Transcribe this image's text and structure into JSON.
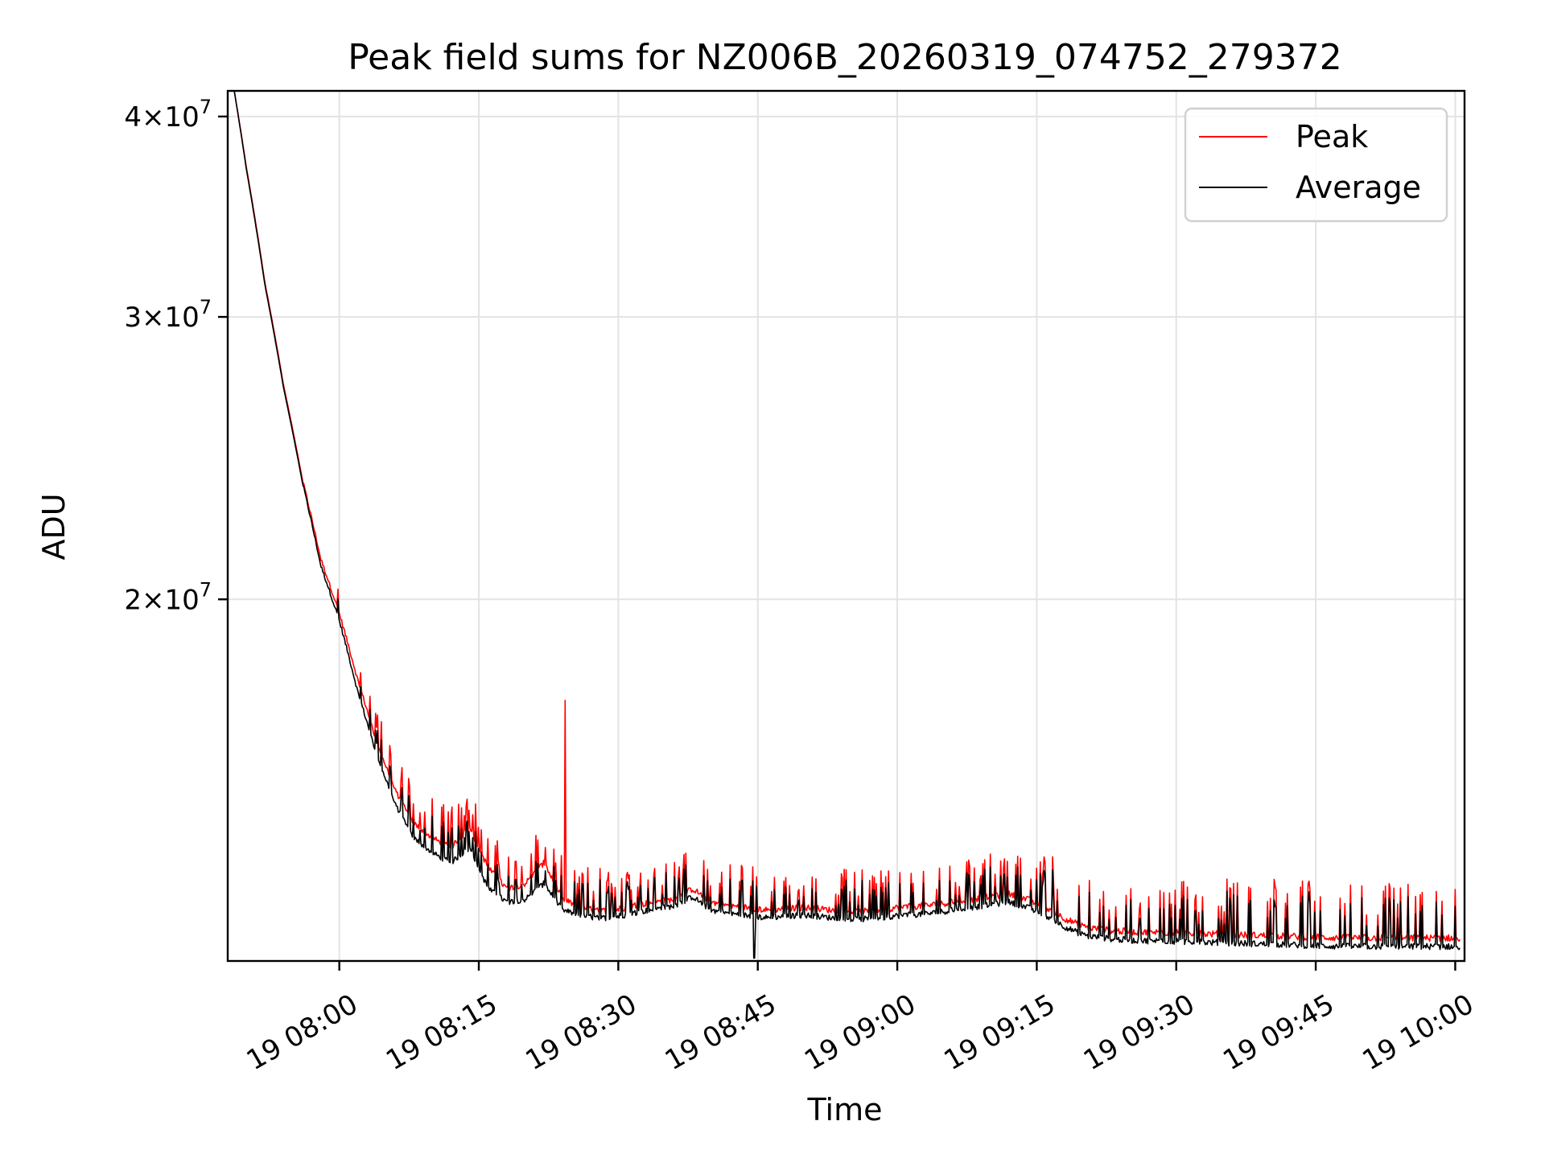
{
  "chart_data": {
    "type": "line",
    "title": "Peak field sums for NZ006B_20260319_074752_279372",
    "xlabel": "Time",
    "ylabel": "ADU",
    "y_scale": "log",
    "xlim_minutes": [
      -12,
      121
    ],
    "ylim": [
      11900000,
      41500000
    ],
    "x_ticks": [
      {
        "minutes": 0,
        "label": "19 08:00"
      },
      {
        "minutes": 15,
        "label": "19 08:15"
      },
      {
        "minutes": 30,
        "label": "19 08:30"
      },
      {
        "minutes": 45,
        "label": "19 08:45"
      },
      {
        "minutes": 60,
        "label": "19 09:00"
      },
      {
        "minutes": 75,
        "label": "19 09:15"
      },
      {
        "minutes": 90,
        "label": "19 09:30"
      },
      {
        "minutes": 105,
        "label": "19 09:45"
      },
      {
        "minutes": 120,
        "label": "19 10:00"
      }
    ],
    "y_ticks": [
      {
        "value": 20000000,
        "base": "2",
        "exp": "7"
      },
      {
        "value": 30000000,
        "base": "3",
        "exp": "7"
      },
      {
        "value": 40000000,
        "base": "4",
        "exp": "7"
      }
    ],
    "grid": true,
    "legend_position": "top-right",
    "series": [
      {
        "name": "Peak",
        "color": "#ff0000",
        "x_minutes": [
          -11.3,
          -10,
          -8,
          -6,
          -4,
          -2,
          0,
          2,
          4,
          6,
          8,
          10,
          12,
          14,
          16,
          18,
          20,
          22,
          24,
          26,
          28,
          30,
          32,
          34,
          36,
          38,
          40,
          42,
          44,
          46,
          48,
          50,
          52,
          54,
          56,
          58,
          60,
          62,
          64,
          66,
          68,
          70,
          72,
          74,
          76,
          78,
          80,
          82,
          84,
          86,
          88,
          90,
          92,
          94,
          96,
          98,
          100,
          102,
          104,
          106,
          108,
          110,
          112,
          114,
          116,
          118,
          120,
          120.5
        ],
        "values": [
          41500000,
          37200000,
          31500000,
          27200000,
          23800000,
          21200000,
          19600000,
          17800000,
          16300000,
          15200000,
          14500000,
          14200000,
          14000000,
          14400000,
          13600000,
          13200000,
          13300000,
          13700000,
          13000000,
          12850000,
          12780000,
          12820000,
          12900000,
          12950000,
          13000000,
          13200000,
          12950000,
          12880000,
          12850000,
          12800000,
          12830000,
          12850000,
          12820000,
          12780000,
          12770000,
          12800000,
          12850000,
          12870000,
          12900000,
          12950000,
          13000000,
          13050000,
          13100000,
          13000000,
          12850000,
          12650000,
          12500000,
          12450000,
          12420000,
          12400000,
          12400000,
          12390000,
          12380000,
          12370000,
          12360000,
          12350000,
          12340000,
          12330000,
          12320000,
          12310000,
          12300000,
          12300000,
          12300000,
          12300000,
          12300000,
          12300000,
          12300000,
          12300000
        ]
      },
      {
        "name": "Average",
        "color": "#000000",
        "x_minutes": [
          -11.3,
          -10,
          -8,
          -6,
          -4,
          -2,
          0,
          2,
          4,
          6,
          8,
          10,
          12,
          14,
          16,
          18,
          20,
          22,
          24,
          26,
          28,
          30,
          32,
          34,
          36,
          38,
          40,
          42,
          44,
          46,
          48,
          50,
          52,
          54,
          56,
          58,
          60,
          62,
          64,
          66,
          68,
          70,
          72,
          74,
          76,
          78,
          80,
          82,
          84,
          86,
          88,
          90,
          92,
          94,
          96,
          98,
          100,
          102,
          104,
          106,
          108,
          110,
          112,
          114,
          116,
          118,
          120,
          120.5
        ],
        "values": [
          41500000,
          37100000,
          31400000,
          27100000,
          23700000,
          21000000,
          19400000,
          17500000,
          16000000,
          14900000,
          14200000,
          13900000,
          13700000,
          14000000,
          13200000,
          12950000,
          13000000,
          13300000,
          12800000,
          12700000,
          12650000,
          12690000,
          12760000,
          12820000,
          12880000,
          13050000,
          12800000,
          12740000,
          12700000,
          12660000,
          12690000,
          12710000,
          12680000,
          12640000,
          12630000,
          12660000,
          12700000,
          12720000,
          12750000,
          12800000,
          12850000,
          12900000,
          12950000,
          12850000,
          12700000,
          12500000,
          12350000,
          12300000,
          12270000,
          12250000,
          12250000,
          12240000,
          12230000,
          12220000,
          12210000,
          12200000,
          12190000,
          12180000,
          12170000,
          12160000,
          12150000,
          12150000,
          12150000,
          12150000,
          12150000,
          12150000,
          12150000,
          12150000
        ]
      }
    ]
  }
}
